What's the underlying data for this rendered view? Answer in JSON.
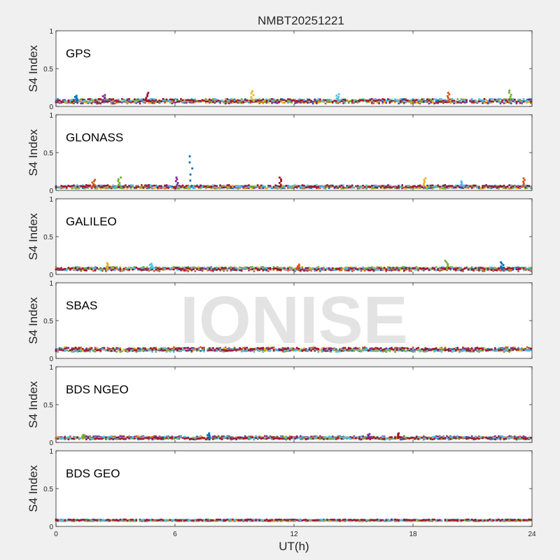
{
  "figure": {
    "title": "NMBT20251221",
    "background": "#f0f0f0",
    "axes_background": "#ffffff",
    "watermark": "IONISE",
    "watermark_color": "#e3e3e3"
  },
  "series_colors": [
    "#0072bd",
    "#d95319",
    "#edb120",
    "#7e2f8e",
    "#77ac30",
    "#4dbeee",
    "#a2142f"
  ],
  "chart_data": [
    {
      "type": "scatter",
      "label": "GPS",
      "ylabel": "S4 Index",
      "xlim": [
        0,
        24
      ],
      "ylim": [
        0,
        1
      ],
      "yticks": [
        "0",
        "0.5",
        "1"
      ],
      "xticks": [],
      "baseline_s4": 0.07,
      "spread_s4": 0.03,
      "spikes": [
        [
          1.0,
          0.14
        ],
        [
          2.4,
          0.15
        ],
        [
          4.6,
          0.18
        ],
        [
          9.9,
          0.2
        ],
        [
          14.2,
          0.16
        ],
        [
          19.8,
          0.18
        ],
        [
          22.9,
          0.21
        ]
      ]
    },
    {
      "type": "scatter",
      "label": "GLONASS",
      "ylabel": "S4 Index",
      "xlim": [
        0,
        24
      ],
      "ylim": [
        0,
        1
      ],
      "yticks": [
        "0",
        "0.5",
        "1"
      ],
      "xticks": [],
      "baseline_s4": 0.05,
      "spread_s4": 0.025,
      "spikes": [
        [
          1.9,
          0.14
        ],
        [
          3.2,
          0.17
        ],
        [
          6.8,
          0.45
        ],
        [
          6.1,
          0.17
        ],
        [
          11.3,
          0.17
        ],
        [
          18.6,
          0.16
        ],
        [
          20.5,
          0.12
        ],
        [
          23.6,
          0.16
        ]
      ]
    },
    {
      "type": "scatter",
      "label": "GALILEO",
      "ylabel": "S4 Index",
      "xlim": [
        0,
        24
      ],
      "ylim": [
        0,
        1
      ],
      "yticks": [
        "0",
        "0.5",
        "1"
      ],
      "xticks": [],
      "baseline_s4": 0.07,
      "spread_s4": 0.025,
      "spikes": [
        [
          2.6,
          0.15
        ],
        [
          4.8,
          0.14
        ],
        [
          12.2,
          0.13
        ],
        [
          19.7,
          0.18
        ],
        [
          22.5,
          0.16
        ]
      ]
    },
    {
      "type": "scatter",
      "label": "SBAS",
      "ylabel": "S4 Index",
      "xlim": [
        0,
        24
      ],
      "ylim": [
        0,
        1
      ],
      "yticks": [
        "0",
        "0.5",
        "1"
      ],
      "xticks": [],
      "baseline_s4": 0.12,
      "spread_s4": 0.03,
      "spikes": []
    },
    {
      "type": "scatter",
      "label": "BDS NGEO",
      "ylabel": "S4 Index",
      "xlim": [
        0,
        24
      ],
      "ylim": [
        0,
        1
      ],
      "yticks": [
        "0",
        "0.5",
        "1"
      ],
      "xticks": [],
      "baseline_s4": 0.06,
      "spread_s4": 0.02,
      "spikes": [
        [
          1.4,
          0.1
        ],
        [
          7.7,
          0.12
        ],
        [
          15.8,
          0.11
        ],
        [
          17.3,
          0.12
        ]
      ]
    },
    {
      "type": "scatter",
      "label": "BDS GEO",
      "ylabel": "S4 Index",
      "xlim": [
        0,
        24
      ],
      "ylim": [
        0,
        1
      ],
      "yticks": [
        "0",
        "0.5",
        "1"
      ],
      "xticks": [
        "0",
        "6",
        "12",
        "18",
        "24"
      ],
      "xlabel": "UT(h)",
      "baseline_s4": 0.08,
      "spread_s4": 0.01,
      "spikes": []
    }
  ]
}
